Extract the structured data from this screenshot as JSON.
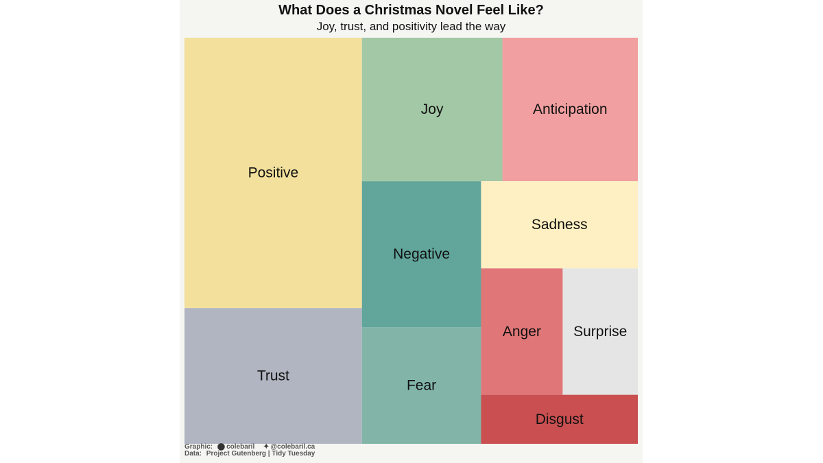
{
  "chart_data": {
    "type": "treemap",
    "title": "What Does a Christmas Novel Feel Like?",
    "subtitle": "Joy, trust, and positivity lead the way",
    "items": [
      {
        "label": "Positive",
        "value": 1000,
        "color": "#f2e09c"
      },
      {
        "label": "Negative",
        "value": 363,
        "color": "#61a59b"
      },
      {
        "label": "Trust",
        "value": 502,
        "color": "#b0b5c1"
      },
      {
        "label": "Joy",
        "value": 420,
        "color": "#a3c8a6"
      },
      {
        "label": "Anticipation",
        "value": 405,
        "color": "#f19fa0"
      },
      {
        "label": "Fear",
        "value": 289,
        "color": "#82b5a8"
      },
      {
        "label": "Sadness",
        "value": 285,
        "color": "#fef0c2"
      },
      {
        "label": "Anger",
        "value": 215,
        "color": "#e07677"
      },
      {
        "label": "Surprise",
        "value": 198,
        "color": "#e5e5e5"
      },
      {
        "label": "Disgust",
        "value": 160,
        "color": "#c94f50"
      }
    ]
  },
  "caption": {
    "graphic_label": "Graphic:",
    "github_handle": "colebaril",
    "bluesky_handle": "@colebaril.ca",
    "data_label": "Data:",
    "data_source": "Project Gutenberg | Tidy Tuesday",
    "github_icon": "github-icon",
    "bluesky_icon": "bluesky-butterfly-icon"
  }
}
